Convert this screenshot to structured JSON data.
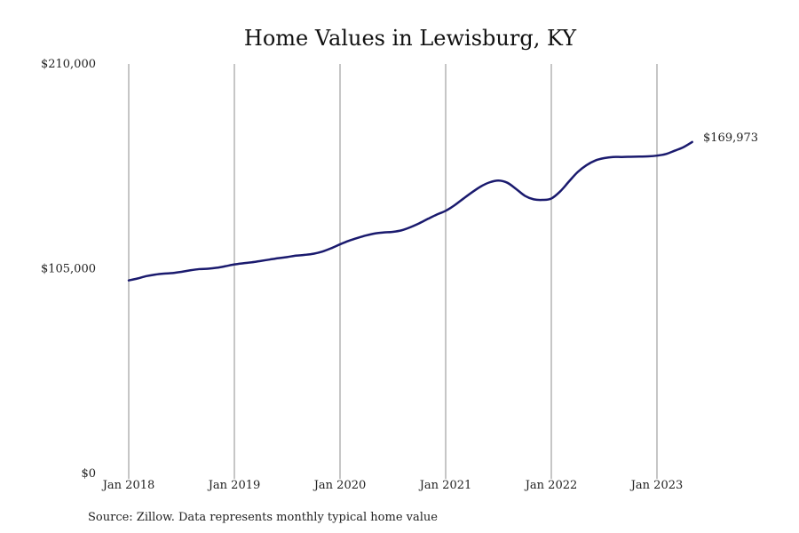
{
  "chart_data": {
    "type": "line",
    "title": "Home Values in Lewisburg, KY",
    "source": "Source: Zillow. Data represents monthly typical home value",
    "ylim": [
      0,
      210000
    ],
    "y_ticks": [
      "$0",
      "$105,000",
      "$210,000"
    ],
    "y_tick_values": [
      0,
      105000,
      210000
    ],
    "x_ticks": [
      "Jan 2018",
      "Jan 2019",
      "Jan 2020",
      "Jan 2021",
      "Jan 2022",
      "Jan 2023"
    ],
    "x_tick_values": [
      "2018-01",
      "2019-01",
      "2020-01",
      "2021-01",
      "2022-01",
      "2023-01"
    ],
    "grid": "vertical at x ticks",
    "end_label": "$169,973",
    "line_color": "#1a1a6e",
    "series": [
      {
        "x": [
          "2018-01",
          "2018-02",
          "2018-03",
          "2018-04",
          "2018-05",
          "2018-06",
          "2018-07",
          "2018-08",
          "2018-09",
          "2018-10",
          "2018-11",
          "2018-12",
          "2019-01",
          "2019-02",
          "2019-03",
          "2019-04",
          "2019-05",
          "2019-06",
          "2019-07",
          "2019-08",
          "2019-09",
          "2019-10",
          "2019-11",
          "2019-12",
          "2020-01",
          "2020-02",
          "2020-03",
          "2020-04",
          "2020-05",
          "2020-06",
          "2020-07",
          "2020-08",
          "2020-09",
          "2020-10",
          "2020-11",
          "2020-12",
          "2021-01",
          "2021-02",
          "2021-03",
          "2021-04",
          "2021-05",
          "2021-06",
          "2021-07",
          "2021-08",
          "2021-09",
          "2021-10",
          "2021-11",
          "2021-12",
          "2022-01",
          "2022-02",
          "2022-03",
          "2022-04",
          "2022-05",
          "2022-06",
          "2022-07",
          "2022-08",
          "2022-09",
          "2022-10",
          "2022-11",
          "2022-12",
          "2023-01",
          "2023-02",
          "2023-03",
          "2023-04",
          "2023-05"
        ],
        "values": [
          99000,
          100000,
          101200,
          102000,
          102500,
          102800,
          103400,
          104200,
          104800,
          105000,
          105500,
          106300,
          107200,
          107800,
          108300,
          109000,
          109700,
          110400,
          111000,
          111700,
          112100,
          112700,
          113800,
          115500,
          117500,
          119300,
          120800,
          122100,
          123100,
          123600,
          123900,
          124700,
          126300,
          128300,
          130600,
          132800,
          134700,
          137500,
          140900,
          144200,
          147200,
          149300,
          150200,
          149100,
          145900,
          142400,
          140600,
          140300,
          141000,
          144600,
          149700,
          154600,
          158100,
          160500,
          161700,
          162300,
          162300,
          162400,
          162500,
          162600,
          163000,
          163800,
          165500,
          167300,
          169973
        ]
      }
    ]
  }
}
